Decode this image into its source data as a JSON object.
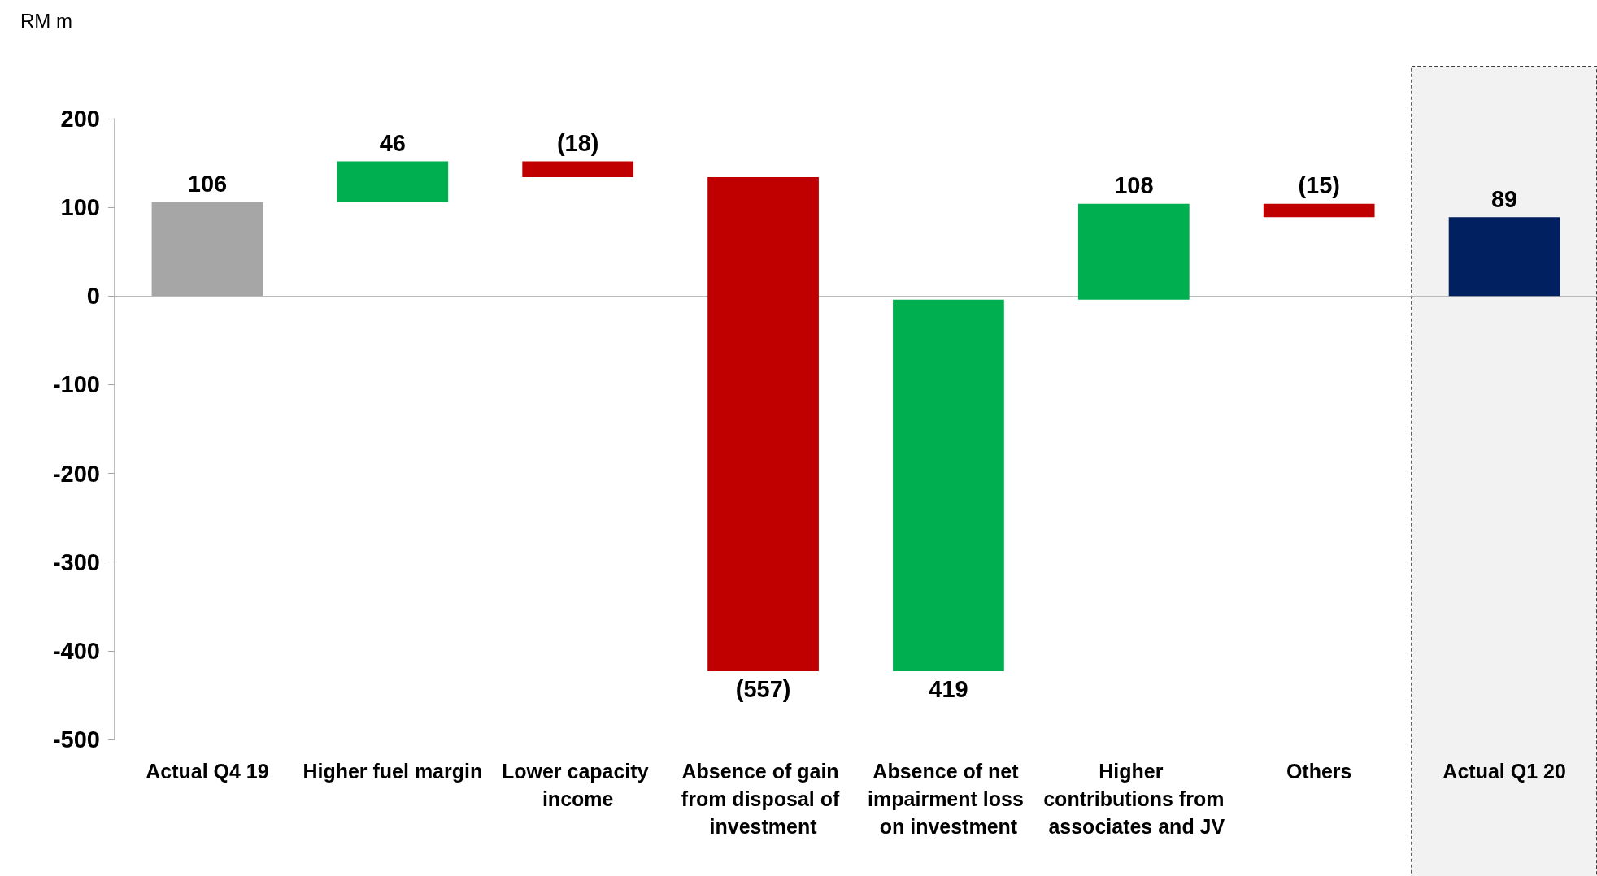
{
  "chart_data": {
    "type": "bar",
    "ylabel": "RM m",
    "categories": [
      "Actual Q4 19",
      "Higher fuel margin",
      "Lower capacity income",
      "Absence of gain from disposal of investment",
      "Absence of net impairment loss on investment",
      "Higher contributions from associates and JV",
      "Others",
      "Actual Q1 20"
    ],
    "values": [
      106,
      46,
      -18,
      -557,
      419,
      108,
      -15,
      89
    ],
    "base": [
      0,
      106,
      152,
      134,
      -423,
      -4,
      104,
      0
    ],
    "colors": [
      "#a6a6a6",
      "#00b050",
      "#c00000",
      "#c00000",
      "#00b050",
      "#00b050",
      "#c00000",
      "#002060"
    ],
    "value_labels": [
      "106",
      "46",
      "(18)",
      "(557)",
      "419",
      "108",
      "(15)",
      "89"
    ],
    "ylim": [
      -500,
      200
    ],
    "yticks": [
      -500,
      -400,
      -300,
      -200,
      -100,
      0,
      100,
      200
    ],
    "bands": [
      {
        "axis": "x",
        "from": "Actual Q1 20",
        "to": "Actual Q1 20",
        "color": "#f2f2f2"
      }
    ]
  }
}
